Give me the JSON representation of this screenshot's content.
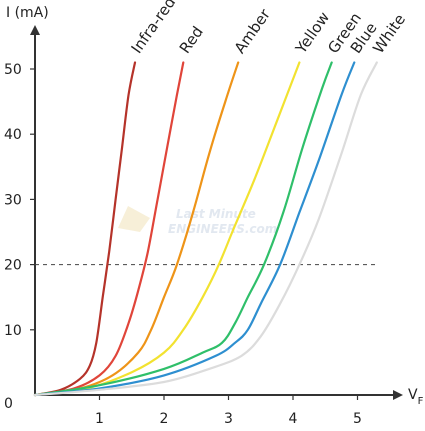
{
  "chart_data": {
    "type": "line",
    "title": "",
    "ylabel": "I (mA)",
    "xlabel_main": "V",
    "xlabel_sub": "F",
    "origin_label": "0",
    "xlim": [
      0,
      5.6
    ],
    "ylim": [
      0,
      52
    ],
    "x_ticks": [
      1,
      2,
      3,
      4,
      5
    ],
    "y_ticks": [
      10,
      20,
      30,
      40,
      50
    ],
    "x_tick_labels": [
      "1",
      "2",
      "3",
      "4",
      "5"
    ],
    "y_tick_labels": [
      "10",
      "20",
      "30",
      "40",
      "50"
    ],
    "reference_line": {
      "y": 20,
      "style": "dashed"
    },
    "watermark": [
      "Last Minute",
      "ENGINEERS.com"
    ],
    "grid": false,
    "series": [
      {
        "name": "Infra-red",
        "color": "#b5332a",
        "points": [
          [
            0,
            0
          ],
          [
            0.4,
            0.8
          ],
          [
            0.7,
            2.5
          ],
          [
            0.85,
            4.5
          ],
          [
            0.95,
            8
          ],
          [
            1.05,
            15
          ],
          [
            1.15,
            22
          ],
          [
            1.25,
            30
          ],
          [
            1.35,
            38
          ],
          [
            1.45,
            46
          ],
          [
            1.55,
            51
          ]
        ]
      },
      {
        "name": "Red",
        "color": "#e0453a",
        "points": [
          [
            0,
            0
          ],
          [
            0.6,
            1
          ],
          [
            1.0,
            3
          ],
          [
            1.25,
            6
          ],
          [
            1.45,
            11
          ],
          [
            1.6,
            16
          ],
          [
            1.75,
            22
          ],
          [
            1.9,
            30
          ],
          [
            2.05,
            38
          ],
          [
            2.2,
            46
          ],
          [
            2.3,
            51
          ]
        ]
      },
      {
        "name": "Amber",
        "color": "#ee9418",
        "points": [
          [
            0,
            0
          ],
          [
            0.7,
            1
          ],
          [
            1.2,
            3
          ],
          [
            1.6,
            6.5
          ],
          [
            1.8,
            10
          ],
          [
            2.0,
            15
          ],
          [
            2.2,
            20
          ],
          [
            2.45,
            28
          ],
          [
            2.7,
            37
          ],
          [
            2.95,
            45
          ],
          [
            3.15,
            51
          ]
        ]
      },
      {
        "name": "Yellow",
        "color": "#f2e230",
        "points": [
          [
            0,
            0
          ],
          [
            0.8,
            1
          ],
          [
            1.5,
            3.5
          ],
          [
            2.0,
            6.5
          ],
          [
            2.3,
            10
          ],
          [
            2.6,
            15
          ],
          [
            2.85,
            20
          ],
          [
            3.1,
            26
          ],
          [
            3.4,
            33
          ],
          [
            3.75,
            42
          ],
          [
            4.1,
            51
          ]
        ]
      },
      {
        "name": "Green",
        "color": "#2fbf6a",
        "points": [
          [
            0,
            0
          ],
          [
            1.0,
            1.5
          ],
          [
            2.0,
            4
          ],
          [
            2.6,
            6.5
          ],
          [
            2.9,
            8
          ],
          [
            3.1,
            11
          ],
          [
            3.3,
            15
          ],
          [
            3.55,
            20
          ],
          [
            3.85,
            28
          ],
          [
            4.15,
            38
          ],
          [
            4.45,
            47
          ],
          [
            4.6,
            51
          ]
        ]
      },
      {
        "name": "Blue",
        "color": "#2e8fd0",
        "points": [
          [
            0,
            0
          ],
          [
            1.0,
            1
          ],
          [
            2.0,
            3
          ],
          [
            2.8,
            6
          ],
          [
            3.1,
            8
          ],
          [
            3.3,
            10
          ],
          [
            3.5,
            14
          ],
          [
            3.8,
            20
          ],
          [
            4.1,
            28
          ],
          [
            4.4,
            36
          ],
          [
            4.75,
            46
          ],
          [
            4.95,
            51
          ]
        ]
      },
      {
        "name": "White",
        "color": "#dcdcdc",
        "points": [
          [
            0,
            0
          ],
          [
            1.0,
            0.8
          ],
          [
            2.0,
            2
          ],
          [
            2.7,
            4
          ],
          [
            3.2,
            6
          ],
          [
            3.5,
            9
          ],
          [
            3.8,
            14
          ],
          [
            4.1,
            20
          ],
          [
            4.4,
            27
          ],
          [
            4.75,
            37
          ],
          [
            5.05,
            46
          ],
          [
            5.3,
            51
          ]
        ]
      }
    ]
  }
}
